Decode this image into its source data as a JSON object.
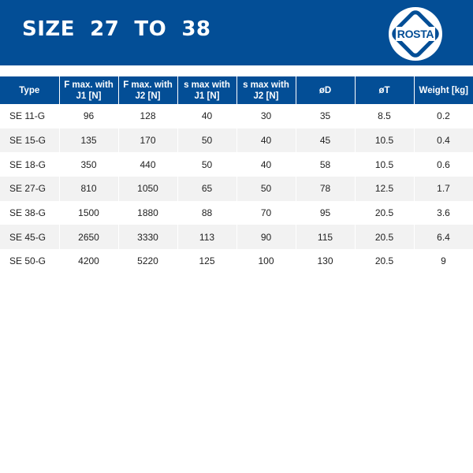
{
  "header": {
    "title": "SIZE  27  TO  38",
    "logo_text": "ROSTA",
    "background_color": "#034e96"
  },
  "table": {
    "columns": [
      "Type",
      "F  max. with J1 [N]",
      "F  max. with J2 [N]",
      "s max with J1 [N]",
      "s max with J2 [N]",
      "øD",
      "øT",
      "Weight [kg]"
    ],
    "rows": [
      [
        "SE 11-G",
        "96",
        "128",
        "40",
        "30",
        "35",
        "8.5",
        "0.2"
      ],
      [
        "SE 15-G",
        "135",
        "170",
        "50",
        "40",
        "45",
        "10.5",
        "0.4"
      ],
      [
        "SE 18-G",
        "350",
        "440",
        "50",
        "40",
        "58",
        "10.5",
        "0.6"
      ],
      [
        "SE 27-G",
        "810",
        "1050",
        "65",
        "50",
        "78",
        "12.5",
        "1.7"
      ],
      [
        "SE 38-G",
        "1500",
        "1880",
        "88",
        "70",
        "95",
        "20.5",
        "3.6"
      ],
      [
        "SE 45-G",
        "2650",
        "3330",
        "113",
        "90",
        "115",
        "20.5",
        "6.4"
      ],
      [
        "SE 50-G",
        "4200",
        "5220",
        "125",
        "100",
        "130",
        "20.5",
        "9"
      ]
    ]
  }
}
